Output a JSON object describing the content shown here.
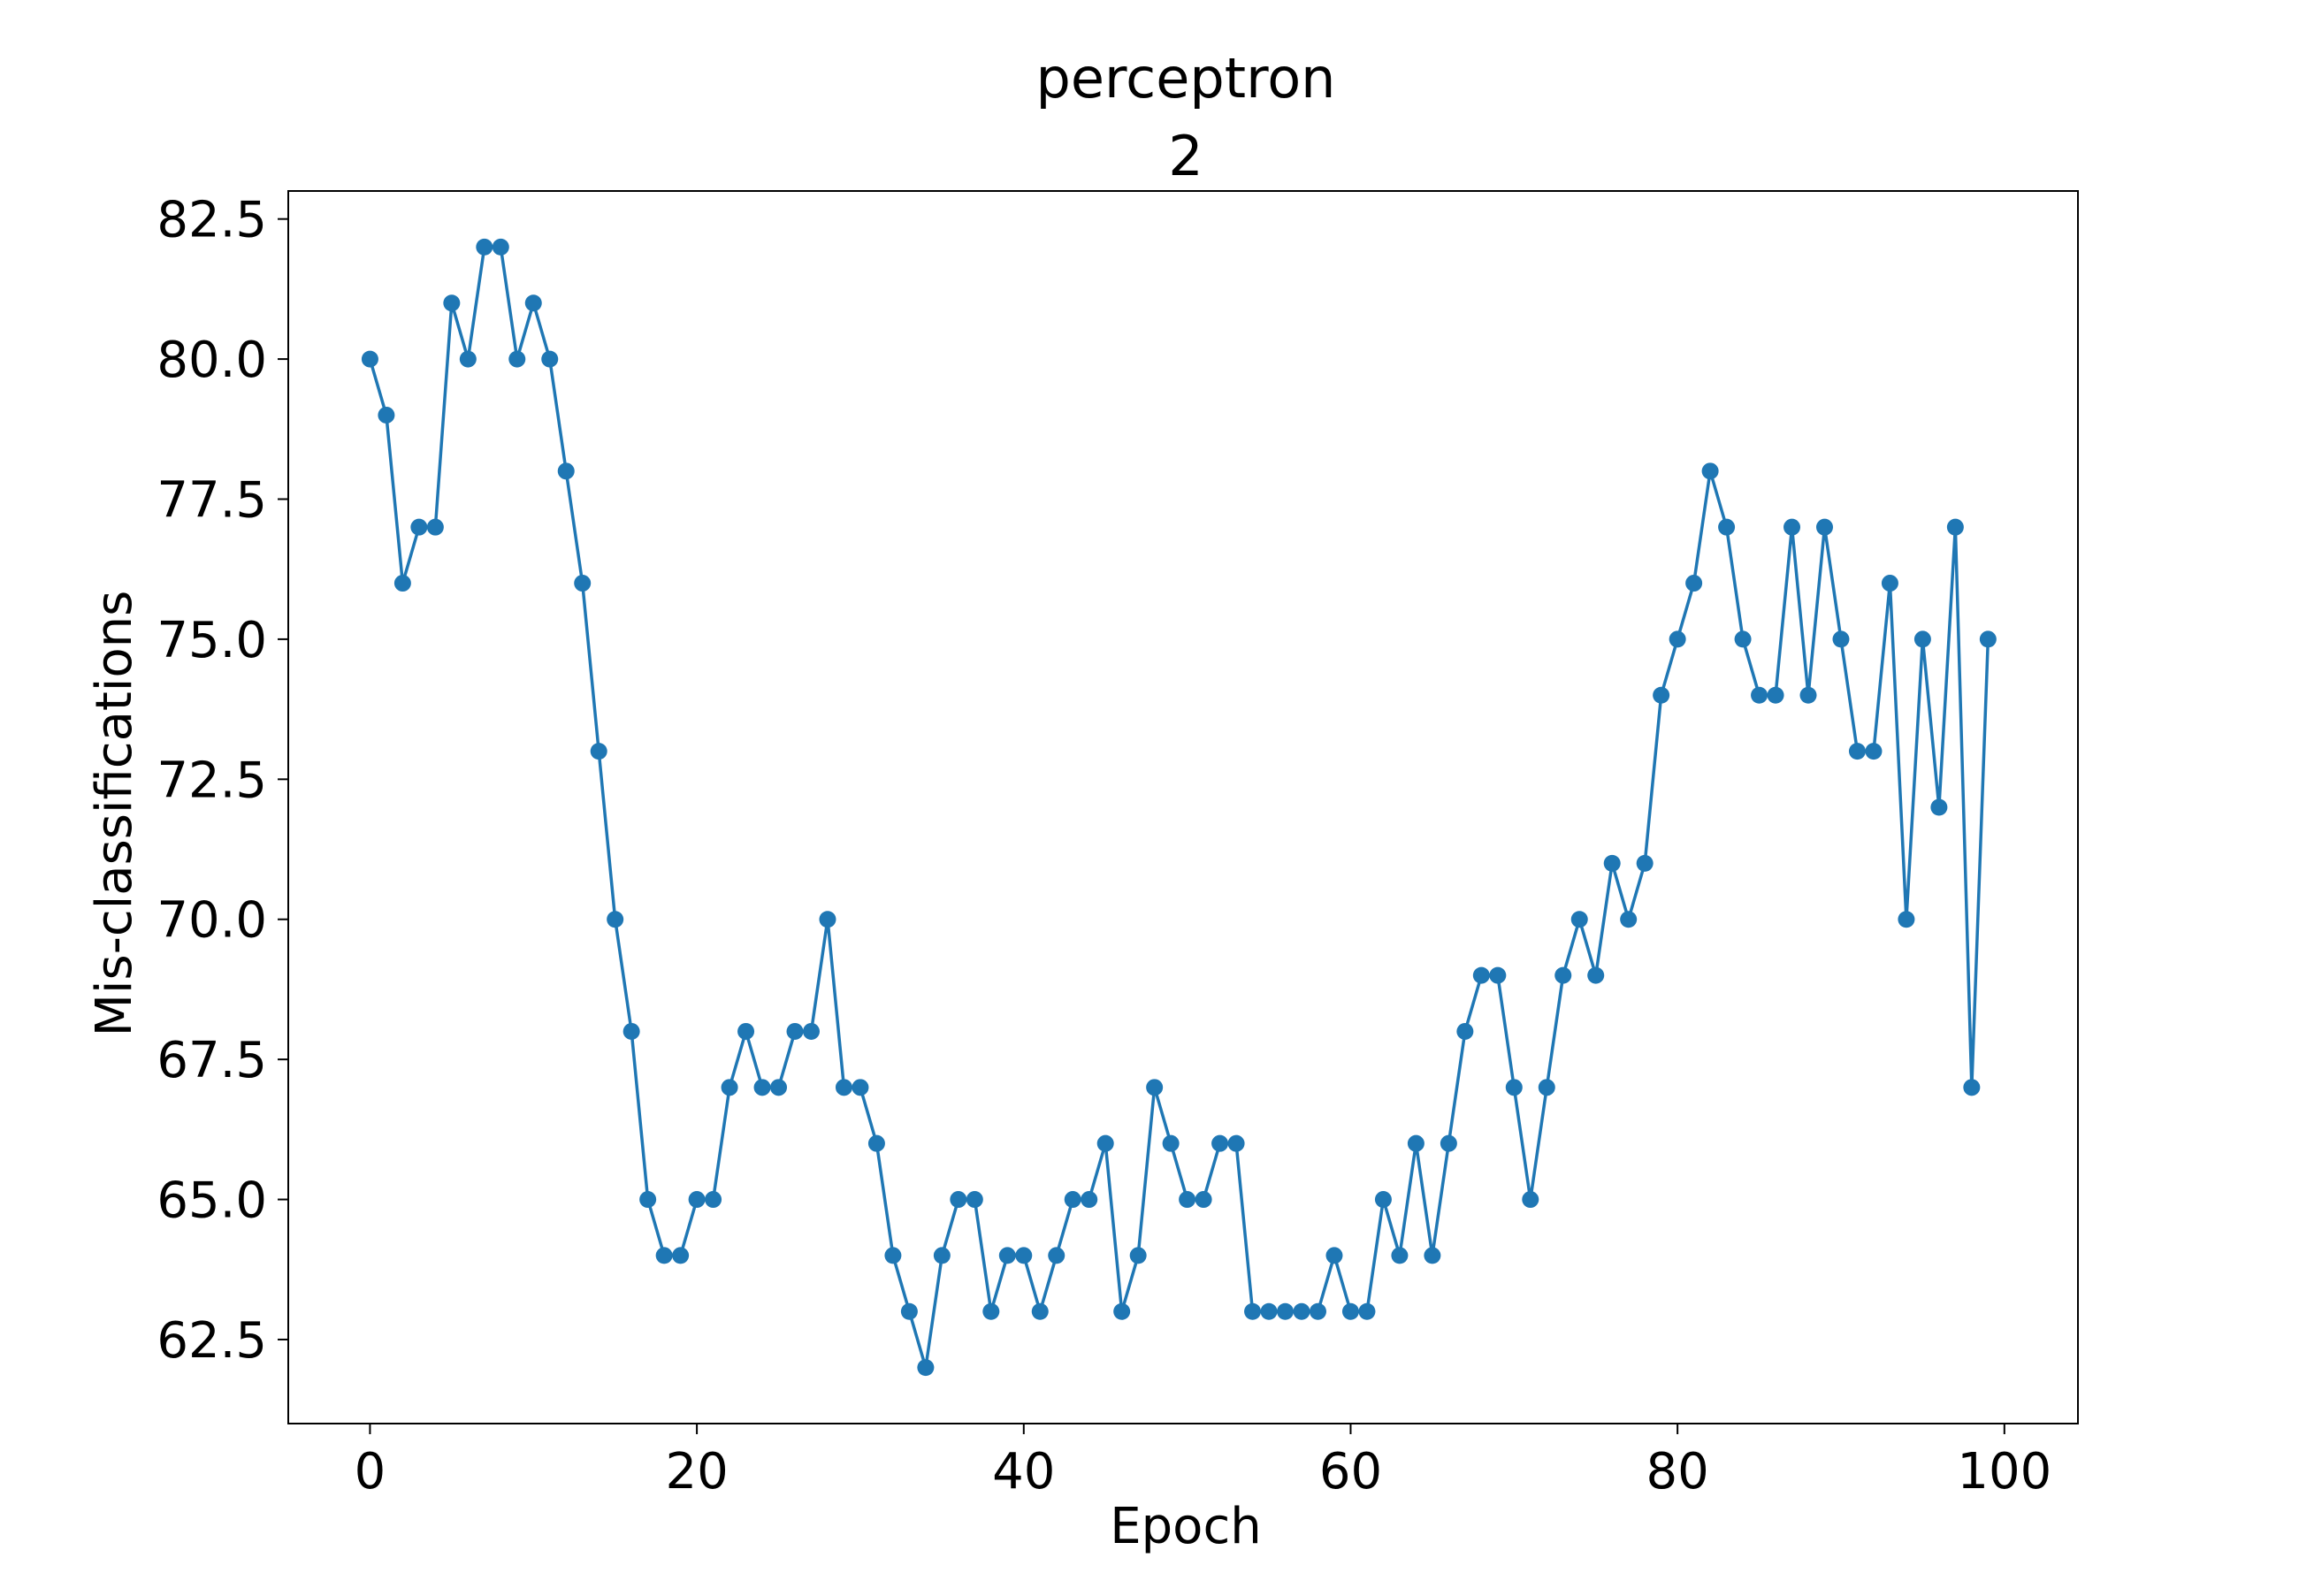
{
  "chart_data": {
    "type": "line",
    "title": "perceptron",
    "subtitle": "2",
    "xlabel": "Epoch",
    "ylabel": "Mis-classifications",
    "xlim": [
      -5,
      104.5
    ],
    "ylim": [
      61,
      83
    ],
    "xticks": [
      0,
      20,
      40,
      60,
      80,
      100
    ],
    "xtick_labels": [
      "0",
      "20",
      "40",
      "60",
      "80",
      "100"
    ],
    "yticks": [
      62.5,
      65.0,
      67.5,
      70.0,
      72.5,
      75.0,
      77.5,
      80.0,
      82.5
    ],
    "ytick_labels": [
      "62.5",
      "65.0",
      "67.5",
      "70.0",
      "72.5",
      "75.0",
      "77.5",
      "80.0",
      "82.5"
    ],
    "grid": false,
    "legend": false,
    "series": [
      {
        "color": "#1f77b4",
        "marker": "circle",
        "x": [
          0,
          1,
          2,
          3,
          4,
          5,
          6,
          7,
          8,
          9,
          10,
          11,
          12,
          13,
          14,
          15,
          16,
          17,
          18,
          19,
          20,
          21,
          22,
          23,
          24,
          25,
          26,
          27,
          28,
          29,
          30,
          31,
          32,
          33,
          34,
          35,
          36,
          37,
          38,
          39,
          40,
          41,
          42,
          43,
          44,
          45,
          46,
          47,
          48,
          49,
          50,
          51,
          52,
          53,
          54,
          55,
          56,
          57,
          58,
          59,
          60,
          61,
          62,
          63,
          64,
          65,
          66,
          67,
          68,
          69,
          70,
          71,
          72,
          73,
          74,
          75,
          76,
          77,
          78,
          79,
          80,
          81,
          82,
          83,
          84,
          85,
          86,
          87,
          88,
          89,
          90,
          91,
          92,
          93,
          94,
          95,
          96,
          97,
          98,
          99
        ],
        "y": [
          80,
          79,
          76,
          77,
          77,
          81,
          80,
          82,
          82,
          80,
          81,
          80,
          78,
          76,
          73,
          70,
          68,
          65,
          64,
          64,
          65,
          65,
          67,
          68,
          67,
          67,
          68,
          68,
          70,
          67,
          67,
          66,
          64,
          63,
          62,
          64,
          65,
          65,
          63,
          64,
          64,
          63,
          64,
          65,
          65,
          66,
          63,
          64,
          67,
          66,
          65,
          65,
          66,
          66,
          63,
          63,
          63,
          63,
          63,
          64,
          63,
          63,
          65,
          64,
          66,
          64,
          66,
          68,
          69,
          69,
          67,
          65,
          67,
          69,
          70,
          69,
          71,
          70,
          71,
          74,
          75,
          76,
          78,
          77,
          75,
          74,
          74,
          77,
          74,
          77,
          75,
          73,
          73,
          76,
          70,
          75,
          72,
          77,
          67,
          75
        ]
      }
    ]
  }
}
